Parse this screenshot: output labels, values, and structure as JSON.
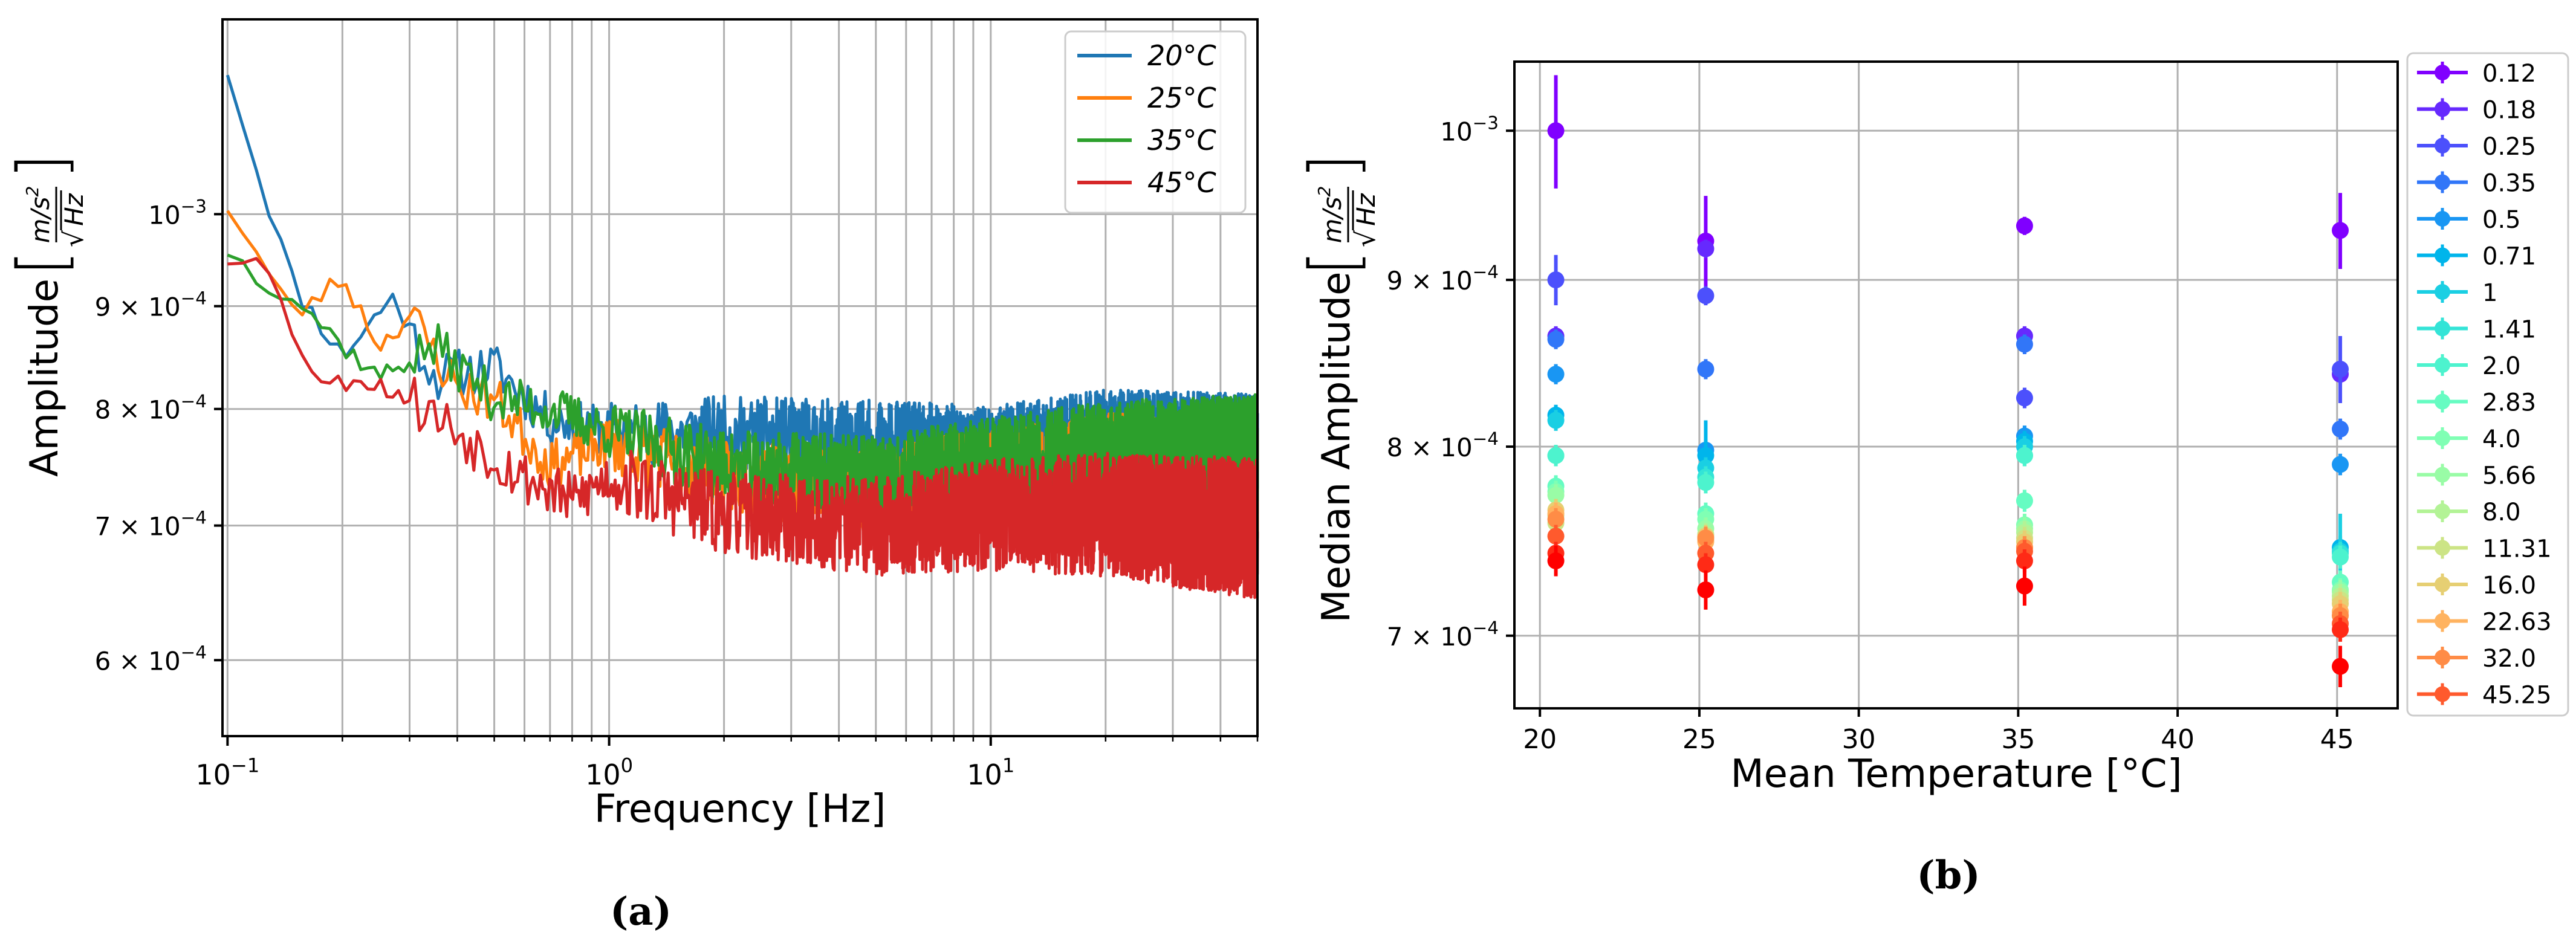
{
  "chart_data": [
    {
      "type": "line",
      "panel_label": "(a)",
      "xlabel": "Frequency [Hz]",
      "ylabel": "Amplitude",
      "yunit_num": "m/s",
      "yunit_sup": "2",
      "yunit_den": "Hz",
      "xscale": "log",
      "yscale": "log",
      "xlim": [
        0.097,
        50
      ],
      "ylim": [
        0.00055,
        0.00125
      ],
      "xticks": [
        {
          "value": 0.1,
          "base": "10",
          "exp": "−1"
        },
        {
          "value": 1,
          "base": "10",
          "exp": "0"
        },
        {
          "value": 10,
          "base": "10",
          "exp": "1"
        }
      ],
      "yticks": [
        {
          "value": 0.001,
          "base": "10",
          "exp": "−3",
          "mant": ""
        },
        {
          "value": 0.0009,
          "mant": "9 ×",
          "base": "10",
          "exp": "−4"
        },
        {
          "value": 0.0008,
          "mant": "8 ×",
          "base": "10",
          "exp": "−4"
        },
        {
          "value": 0.0007,
          "mant": "7 ×",
          "base": "10",
          "exp": "−4"
        },
        {
          "value": 0.0006,
          "mant": "6 ×",
          "base": "10",
          "exp": "−4"
        }
      ],
      "legend_position": "top-right",
      "series": [
        {
          "name": "20°C",
          "color": "#1f77b4",
          "seed": 11,
          "noise": 0.035,
          "anchors": [
            [
              0.1,
              0.00118
            ],
            [
              0.12,
              0.00105
            ],
            [
              0.15,
              0.00092
            ],
            [
              0.2,
              0.00085
            ],
            [
              0.27,
              0.00091
            ],
            [
              0.35,
              0.00083
            ],
            [
              0.5,
              0.00084
            ],
            [
              0.7,
              0.00079
            ],
            [
              1,
              0.00078
            ],
            [
              2,
              0.00078
            ],
            [
              5,
              0.00077
            ],
            [
              10,
              0.00076
            ],
            [
              20,
              0.00077
            ],
            [
              50,
              0.00076
            ]
          ]
        },
        {
          "name": "25°C",
          "color": "#ff7f0e",
          "seed": 23,
          "noise": 0.035,
          "anchors": [
            [
              0.1,
              0.00101
            ],
            [
              0.13,
              0.00093
            ],
            [
              0.15,
              0.00089
            ],
            [
              0.2,
              0.00093
            ],
            [
              0.25,
              0.00086
            ],
            [
              0.3,
              0.00089
            ],
            [
              0.4,
              0.00082
            ],
            [
              0.5,
              0.00081
            ],
            [
              0.7,
              0.00075
            ],
            [
              1,
              0.00077
            ],
            [
              2,
              0.00074
            ],
            [
              5,
              0.00073
            ],
            [
              10,
              0.00074
            ],
            [
              20,
              0.00075
            ],
            [
              50,
              0.00074
            ]
          ]
        },
        {
          "name": "35°C",
          "color": "#2ca02c",
          "seed": 37,
          "noise": 0.035,
          "anchors": [
            [
              0.1,
              0.00096
            ],
            [
              0.12,
              0.00093
            ],
            [
              0.15,
              0.00091
            ],
            [
              0.2,
              0.00086
            ],
            [
              0.25,
              0.00083
            ],
            [
              0.35,
              0.00086
            ],
            [
              0.5,
              0.00081
            ],
            [
              0.7,
              0.0008
            ],
            [
              1,
              0.00078
            ],
            [
              2,
              0.00075
            ],
            [
              5,
              0.00074
            ],
            [
              10,
              0.00075
            ],
            [
              20,
              0.00076
            ],
            [
              50,
              0.00076
            ]
          ]
        },
        {
          "name": "45°C",
          "color": "#d62728",
          "seed": 53,
          "noise": 0.04,
          "anchors": [
            [
              0.1,
              0.00095
            ],
            [
              0.12,
              0.00096
            ],
            [
              0.15,
              0.00087
            ],
            [
              0.18,
              0.00082
            ],
            [
              0.22,
              0.00083
            ],
            [
              0.3,
              0.00081
            ],
            [
              0.4,
              0.00078
            ],
            [
              0.6,
              0.00074
            ],
            [
              0.8,
              0.00072
            ],
            [
              1,
              0.00074
            ],
            [
              2,
              0.00071
            ],
            [
              5,
              0.0007
            ],
            [
              10,
              0.00071
            ],
            [
              20,
              0.00071
            ],
            [
              50,
              0.0007
            ]
          ]
        }
      ]
    },
    {
      "type": "scatter",
      "panel_label": "(b)",
      "xlabel": "Mean Temperature [°C]",
      "ylabel": "Median Amplitude",
      "yunit_num": "m/s",
      "yunit_sup": "2",
      "yunit_den": "Hz",
      "yscale": "log",
      "xlim": [
        19.2,
        46.9
      ],
      "ylim": [
        0.000665,
        0.00105
      ],
      "xticks": [
        20,
        25,
        30,
        35,
        40,
        45
      ],
      "yticks": [
        {
          "value": 0.001,
          "base": "10",
          "exp": "−3",
          "mant": ""
        },
        {
          "value": 0.0009,
          "mant": "9 ×",
          "base": "10",
          "exp": "−4"
        },
        {
          "value": 0.0008,
          "mant": "8 ×",
          "base": "10",
          "exp": "−4"
        },
        {
          "value": 0.0007,
          "mant": "7 ×",
          "base": "10",
          "exp": "−4"
        }
      ],
      "legend_position": "outside-right",
      "temperatures": [
        20.5,
        25.2,
        35.2,
        45.1
      ],
      "series": [
        {
          "name": "0.12",
          "color": "#8000ff",
          "values": [
            0.001,
            0.000925,
            0.000935,
            0.000932
          ],
          "errors": [
            4e-05,
            3e-05,
            6e-06,
            2.5e-05
          ]
        },
        {
          "name": "0.18",
          "color": "#6629fe",
          "values": [
            0.000865,
            0.00092,
            0.000865,
            0.000842
          ],
          "errors": [
            6e-06,
            6e-06,
            6e-06,
            6e-06
          ]
        },
        {
          "name": "0.25",
          "color": "#4c50fc",
          "values": [
            0.0009,
            0.00089,
            0.000828,
            0.000845
          ],
          "errors": [
            1.6e-05,
            6e-06,
            6e-06,
            2e-05
          ]
        },
        {
          "name": "0.35",
          "color": "#3176f8",
          "values": [
            0.000863,
            0.000845,
            0.00086,
            0.00081
          ],
          "errors": [
            6e-06,
            6e-06,
            6e-06,
            6e-06
          ]
        },
        {
          "name": "0.5",
          "color": "#1996f3",
          "values": [
            0.000842,
            0.000798,
            0.000806,
            0.00079
          ],
          "errors": [
            6e-06,
            6e-06,
            6e-06,
            6e-06
          ]
        },
        {
          "name": "0.71",
          "color": "#00b5eb",
          "values": [
            0.000818,
            0.000795,
            0.000803,
            0.000745
          ],
          "errors": [
            6e-06,
            2e-05,
            6e-06,
            6e-06
          ]
        },
        {
          "name": "1",
          "color": "#1acfe3",
          "values": [
            0.000815,
            0.000788,
            0.0008,
            0.000743
          ],
          "errors": [
            6e-06,
            6e-06,
            6e-06,
            2e-05
          ]
        },
        {
          "name": "1.41",
          "color": "#33e4d7",
          "values": [
            0.000795,
            0.000783,
            0.000795,
            0.000742
          ],
          "errors": [
            6e-06,
            6e-06,
            6e-06,
            6e-06
          ]
        },
        {
          "name": "2.0",
          "color": "#4df3ce",
          "values": [
            0.000795,
            0.00078,
            0.000795,
            0.00074
          ],
          "errors": [
            6e-06,
            6e-06,
            6e-06,
            6e-06
          ]
        },
        {
          "name": "2.83",
          "color": "#66fcc2",
          "values": [
            0.000778,
            0.000763,
            0.00077,
            0.000727
          ],
          "errors": [
            6e-06,
            6e-06,
            6e-06,
            6e-06
          ]
        },
        {
          "name": "4.0",
          "color": "#80ffb4",
          "values": [
            0.000775,
            0.00076,
            0.000757,
            0.000723
          ],
          "errors": [
            6e-06,
            6e-06,
            6e-06,
            6e-06
          ]
        },
        {
          "name": "5.66",
          "color": "#99fca6",
          "values": [
            0.000773,
            0.000755,
            0.000755,
            0.000722
          ],
          "errors": [
            6e-06,
            6e-06,
            6e-06,
            6e-06
          ]
        },
        {
          "name": "8.0",
          "color": "#b3f396",
          "values": [
            0.000762,
            0.000752,
            0.000753,
            0.00072
          ],
          "errors": [
            6e-06,
            6e-06,
            6e-06,
            6e-06
          ]
        },
        {
          "name": "11.31",
          "color": "#cce485",
          "values": [
            0.000758,
            0.000749,
            0.00075,
            0.000718
          ],
          "errors": [
            6e-06,
            6e-06,
            6e-06,
            6e-06
          ]
        },
        {
          "name": "16.0",
          "color": "#e6cf73",
          "values": [
            0.000765,
            0.000751,
            0.000748,
            0.000716
          ],
          "errors": [
            6e-06,
            6e-06,
            6e-06,
            6e-06
          ]
        },
        {
          "name": "22.63",
          "color": "#ffb360",
          "values": [
            0.000763,
            0.000748,
            0.000745,
            0.000712
          ],
          "errors": [
            6e-06,
            6e-06,
            6e-06,
            6e-06
          ]
        },
        {
          "name": "32.0",
          "color": "#ff8c46",
          "values": [
            0.00076,
            0.00075,
            0.000745,
            0.00071
          ],
          "errors": [
            6e-06,
            6e-06,
            6e-06,
            6e-06
          ]
        },
        {
          "name": "45.25",
          "color": "#ff5a2d",
          "values": [
            0.000751,
            0.000742,
            0.000743,
            0.000706
          ],
          "errors": [
            6e-06,
            6e-06,
            6e-06,
            6e-06
          ]
        },
        {
          "name": "",
          "color": "#ff2a16",
          "values": [
            0.000742,
            0.000736,
            0.000738,
            0.000703
          ],
          "errors": [
            6e-06,
            6e-06,
            6e-06,
            6e-06
          ]
        },
        {
          "name": "",
          "color": "#ff0000",
          "values": [
            0.000738,
            0.000723,
            0.000725,
            0.000685
          ],
          "errors": [
            8e-06,
            1e-05,
            1e-05,
            1e-05
          ]
        }
      ]
    }
  ]
}
